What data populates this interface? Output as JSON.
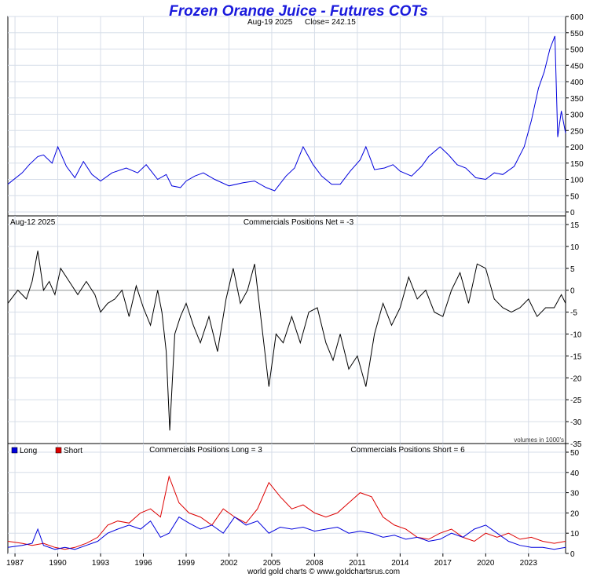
{
  "title": "Frozen Orange Juice - Futures COTs",
  "footer": "world gold charts © www.goldchartsrus.com",
  "chart_data": [
    {
      "type": "line",
      "panel": "price",
      "date_label": "Aug-19  2025",
      "close_label": "Close= 242.15",
      "ylim": [
        0,
        600
      ],
      "yticks": [
        "0",
        "50",
        "100",
        "150",
        "200",
        "250",
        "300",
        "350",
        "400",
        "450",
        "500",
        "550",
        "600"
      ],
      "color": "#0000dd",
      "x": [
        1986.5,
        1987.5,
        1988.0,
        1988.6,
        1989.0,
        1989.6,
        1990.0,
        1990.6,
        1991.2,
        1991.8,
        1992.4,
        1993.0,
        1993.8,
        1994.8,
        1995.6,
        1996.2,
        1997.0,
        1997.6,
        1998.0,
        1998.6,
        1999.0,
        1999.6,
        2000.2,
        2001.0,
        2002.0,
        2003.0,
        2003.8,
        2004.6,
        2005.2,
        2006.0,
        2006.6,
        2007.2,
        2007.9,
        2008.5,
        2009.2,
        2009.8,
        2010.5,
        2011.2,
        2011.6,
        2012.2,
        2012.9,
        2013.5,
        2014.0,
        2014.8,
        2015.5,
        2016.0,
        2016.8,
        2017.4,
        2018.0,
        2018.6,
        2019.3,
        2020.0,
        2020.6,
        2021.2,
        2022.0,
        2022.7,
        2023.2,
        2023.7,
        2024.1,
        2024.5,
        2024.85,
        2025.05,
        2025.3,
        2025.6
      ],
      "y": [
        85,
        120,
        145,
        170,
        175,
        150,
        200,
        140,
        105,
        155,
        115,
        95,
        120,
        135,
        120,
        145,
        100,
        115,
        80,
        75,
        95,
        110,
        120,
        100,
        80,
        90,
        95,
        75,
        65,
        110,
        135,
        200,
        145,
        110,
        85,
        85,
        125,
        160,
        200,
        130,
        135,
        145,
        125,
        110,
        140,
        170,
        200,
        175,
        145,
        135,
        105,
        100,
        120,
        115,
        140,
        200,
        280,
        380,
        430,
        500,
        540,
        230,
        310,
        242
      ]
    },
    {
      "type": "line",
      "panel": "net",
      "date_label": "Aug-12  2025",
      "label": "Commercials Positions Net = -3",
      "note": "volumes in 1000's",
      "ylim": [
        -35,
        15
      ],
      "yticks": [
        "15",
        "10",
        "5",
        "0",
        "-5",
        "-10",
        "-15",
        "-20",
        "-25",
        "-30",
        "-35"
      ],
      "color": "#000000",
      "x": [
        1986.5,
        1987.2,
        1987.8,
        1988.2,
        1988.6,
        1989.0,
        1989.4,
        1989.8,
        1990.2,
        1990.8,
        1991.4,
        1992.0,
        1992.6,
        1993.0,
        1993.5,
        1994.0,
        1994.5,
        1995.0,
        1995.5,
        1996.0,
        1996.5,
        1997.0,
        1997.3,
        1997.6,
        1997.85,
        1998.2,
        1998.6,
        1999.0,
        1999.5,
        2000.0,
        2000.6,
        2001.2,
        2001.8,
        2002.3,
        2002.8,
        2003.3,
        2003.8,
        2004.3,
        2004.8,
        2005.3,
        2005.8,
        2006.4,
        2007.0,
        2007.6,
        2008.2,
        2008.8,
        2009.3,
        2009.8,
        2010.4,
        2011.0,
        2011.6,
        2012.2,
        2012.8,
        2013.4,
        2014.0,
        2014.6,
        2015.2,
        2015.8,
        2016.4,
        2017.0,
        2017.6,
        2018.2,
        2018.8,
        2019.4,
        2020.0,
        2020.6,
        2021.2,
        2021.8,
        2022.4,
        2023.0,
        2023.6,
        2024.2,
        2024.8,
        2025.3,
        2025.6
      ],
      "y": [
        -3,
        0,
        -2,
        2,
        9,
        0,
        2,
        -1,
        5,
        2,
        -1,
        2,
        -1,
        -5,
        -3,
        -2,
        0,
        -6,
        1,
        -4,
        -8,
        0,
        -5,
        -14,
        -32,
        -10,
        -6,
        -3,
        -8,
        -12,
        -6,
        -14,
        -2,
        5,
        -3,
        0,
        6,
        -8,
        -22,
        -10,
        -12,
        -6,
        -12,
        -5,
        -4,
        -12,
        -16,
        -10,
        -18,
        -15,
        -22,
        -10,
        -3,
        -8,
        -4,
        3,
        -2,
        0,
        -5,
        -6,
        0,
        4,
        -3,
        6,
        5,
        -2,
        -4,
        -5,
        -4,
        -2,
        -6,
        -4,
        -4,
        -1,
        -3
      ]
    },
    {
      "type": "line",
      "panel": "long_short",
      "label_long": "Commercials Positions Long = 3",
      "label_short": "Commercials Positions Short = 6",
      "ylim": [
        0,
        50
      ],
      "yticks": [
        "0",
        "10",
        "20",
        "30",
        "40",
        "50"
      ],
      "x_ticks": [
        "1987",
        "1990",
        "1993",
        "1996",
        "1999",
        "2002",
        "2005",
        "2008",
        "2011",
        "2014",
        "2017",
        "2020",
        "2023"
      ],
      "x_tick_values": [
        1987,
        1990,
        1993,
        1996,
        1999,
        2002,
        2005,
        2008,
        2011,
        2014,
        2017,
        2020,
        2023
      ],
      "xlim": [
        1986.5,
        2025.6
      ],
      "series": [
        {
          "name": "Long",
          "color": "#0000dd",
          "x": [
            1986.5,
            1987.5,
            1988.2,
            1988.6,
            1989.0,
            1989.8,
            1990.5,
            1991.2,
            1992.0,
            1992.8,
            1993.5,
            1994.2,
            1995.0,
            1995.8,
            1996.5,
            1997.2,
            1997.8,
            1998.5,
            1999.2,
            2000.0,
            2000.8,
            2001.6,
            2002.4,
            2003.2,
            2004.0,
            2004.8,
            2005.6,
            2006.4,
            2007.2,
            2008.0,
            2008.8,
            2009.6,
            2010.4,
            2011.2,
            2012.0,
            2012.8,
            2013.6,
            2014.4,
            2015.2,
            2016.0,
            2016.8,
            2017.6,
            2018.4,
            2019.2,
            2020.0,
            2020.8,
            2021.6,
            2022.4,
            2023.2,
            2024.0,
            2024.8,
            2025.6
          ],
          "y": [
            3,
            4,
            5,
            12,
            4,
            2,
            3,
            2,
            4,
            6,
            10,
            12,
            14,
            12,
            16,
            8,
            10,
            18,
            15,
            12,
            14,
            10,
            18,
            14,
            16,
            10,
            13,
            12,
            13,
            11,
            12,
            13,
            10,
            11,
            10,
            8,
            9,
            7,
            8,
            6,
            7,
            10,
            8,
            12,
            14,
            10,
            6,
            4,
            3,
            3,
            2,
            3
          ]
        },
        {
          "name": "Short",
          "color": "#dd0000",
          "x": [
            1986.5,
            1987.5,
            1988.2,
            1989.0,
            1989.8,
            1990.5,
            1991.2,
            1992.0,
            1992.8,
            1993.5,
            1994.2,
            1995.0,
            1995.8,
            1996.5,
            1997.2,
            1997.8,
            1998.5,
            1999.2,
            2000.0,
            2000.8,
            2001.6,
            2002.4,
            2003.2,
            2004.0,
            2004.8,
            2005.6,
            2006.4,
            2007.2,
            2008.0,
            2008.8,
            2009.6,
            2010.4,
            2011.2,
            2012.0,
            2012.8,
            2013.6,
            2014.4,
            2015.2,
            2016.0,
            2016.8,
            2017.6,
            2018.4,
            2019.2,
            2020.0,
            2020.8,
            2021.6,
            2022.4,
            2023.2,
            2024.0,
            2024.8,
            2025.6
          ],
          "y": [
            6,
            5,
            4,
            5,
            3,
            2,
            3,
            5,
            8,
            14,
            16,
            15,
            20,
            22,
            18,
            38,
            25,
            20,
            18,
            14,
            22,
            18,
            15,
            22,
            35,
            28,
            22,
            24,
            20,
            18,
            20,
            25,
            30,
            28,
            18,
            14,
            12,
            8,
            7,
            10,
            12,
            8,
            6,
            10,
            8,
            10,
            7,
            8,
            6,
            5,
            6
          ]
        }
      ]
    }
  ]
}
